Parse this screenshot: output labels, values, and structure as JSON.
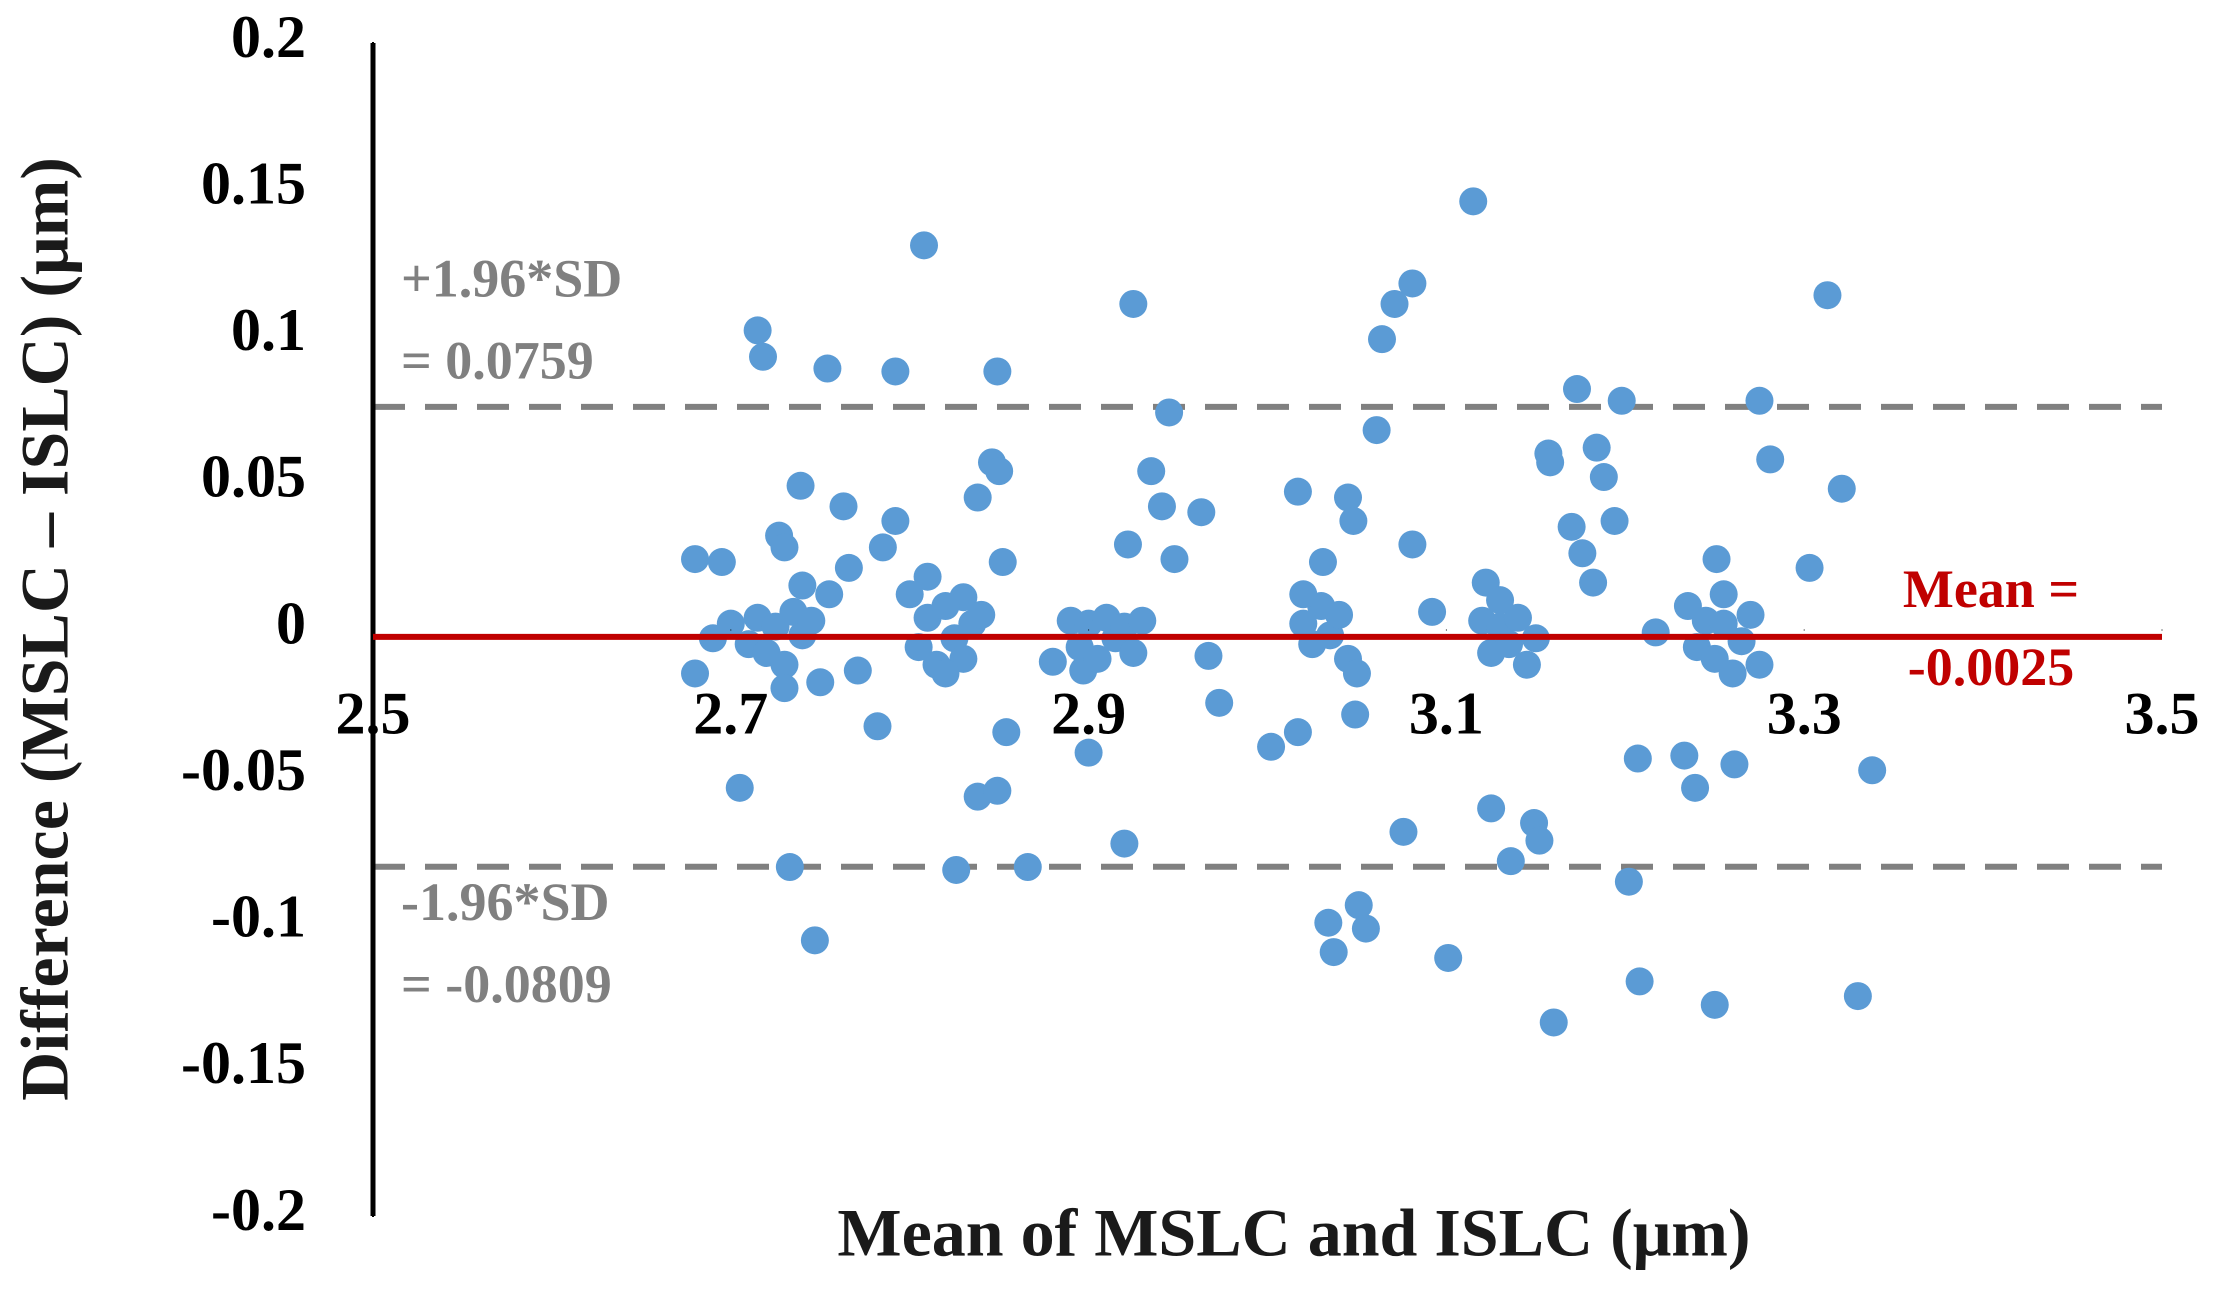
{
  "chart_data": {
    "type": "scatter",
    "x_label": "Mean of MSLC and ISLC (μm)",
    "y_label": "Difference (MSLC – ISLC) (μm)",
    "xlim": [
      2.5,
      3.5
    ],
    "xticks": [
      2.5,
      2.7,
      2.9,
      3.1,
      3.3,
      3.5
    ],
    "ylim": [
      -0.2,
      0.2
    ],
    "yticks": [
      0.2,
      0.15,
      0.1,
      0.05,
      0,
      -0.05,
      -0.1,
      -0.15,
      -0.2
    ],
    "color": "#5b9bd5",
    "reference_lines": [
      {
        "value": 0.0759,
        "label": [
          "+1.96*SD",
          "= 0.0759"
        ],
        "color": "#808080",
        "style": "dashed"
      },
      {
        "value": -0.0809,
        "label": [
          "-1.96*SD",
          "= -0.0809"
        ],
        "color": "#808080",
        "style": "dashed"
      },
      {
        "value": -0.0025,
        "label": [
          "Mean =",
          "-0.0025"
        ],
        "color": "#c00000",
        "style": "solid"
      }
    ],
    "x": [
      2.68,
      2.695,
      2.68,
      2.705,
      2.715,
      2.718,
      2.727,
      2.73,
      2.733,
      2.739,
      2.747,
      2.754,
      2.763,
      2.766,
      2.771,
      2.782,
      2.785,
      2.792,
      2.792,
      2.808,
      2.826,
      2.83,
      2.838,
      2.849,
      2.846,
      2.85,
      2.852,
      2.838,
      2.849,
      2.854,
      2.866,
      2.88,
      2.897,
      2.9,
      2.92,
      2.925,
      2.922,
      2.935,
      2.941,
      2.945,
      2.948,
      2.963,
      2.967,
      2.973,
      3.002,
      3.017,
      3.017,
      3.031,
      3.034,
      3.037,
      3.045,
      3.048,
      3.051,
      3.055,
      3.049,
      3.061,
      3.064,
      3.071,
      3.081,
      3.076,
      3.081,
      3.092,
      3.101,
      3.115,
      3.122,
      3.125,
      3.136,
      3.149,
      3.152,
      3.157,
      3.158,
      3.16,
      3.17,
      3.176,
      3.173,
      3.182,
      3.184,
      3.188,
      3.194,
      3.198,
      3.202,
      3.207,
      3.208,
      3.217,
      3.233,
      3.239,
      3.251,
      3.25,
      3.261,
      3.275,
      3.281,
      3.303,
      3.313,
      3.321,
      3.33,
      3.338,
      2.69,
      2.7,
      2.71,
      2.715,
      2.72,
      2.725,
      2.73,
      2.735,
      2.74,
      2.745,
      2.75,
      2.755,
      2.74,
      2.73,
      2.8,
      2.805,
      2.81,
      2.815,
      2.82,
      2.825,
      2.83,
      2.835,
      2.81,
      2.82,
      2.84,
      2.89,
      2.895,
      2.9,
      2.905,
      2.91,
      2.915,
      2.92,
      2.925,
      2.93,
      3.02,
      3.025,
      3.03,
      3.035,
      3.04,
      3.045,
      3.05,
      3.02,
      3.12,
      3.125,
      3.13,
      3.135,
      3.14,
      3.145,
      3.15,
      3.13,
      3.235,
      3.24,
      3.245,
      3.25,
      3.255,
      3.26,
      3.265,
      3.27,
      3.275,
      3.255
    ],
    "values": [
      0.024,
      0.023,
      -0.015,
      -0.054,
      0.102,
      0.093,
      0.032,
      0.028,
      -0.081,
      0.049,
      -0.106,
      0.089,
      0.042,
      0.021,
      -0.014,
      -0.033,
      0.028,
      0.088,
      0.037,
      0.131,
      -0.082,
      0.011,
      0.045,
      0.088,
      0.057,
      0.054,
      0.023,
      -0.057,
      -0.055,
      -0.035,
      -0.081,
      -0.011,
      -0.014,
      -0.042,
      -0.073,
      0.111,
      0.029,
      0.054,
      0.042,
      0.074,
      0.024,
      0.04,
      -0.009,
      -0.025,
      -0.04,
      0.047,
      -0.035,
      0.023,
      -0.1,
      -0.11,
      0.045,
      0.037,
      -0.094,
      -0.102,
      -0.029,
      0.068,
      0.099,
      0.111,
      0.118,
      -0.069,
      0.029,
      0.006,
      -0.112,
      0.146,
      0.016,
      -0.061,
      -0.079,
      -0.066,
      -0.072,
      0.06,
      0.057,
      -0.134,
      0.035,
      0.026,
      0.082,
      0.016,
      0.062,
      0.052,
      0.037,
      0.078,
      -0.086,
      -0.044,
      -0.12,
      -0.001,
      -0.043,
      -0.054,
      0.024,
      -0.128,
      -0.046,
      0.078,
      0.058,
      0.021,
      0.114,
      0.048,
      -0.125,
      -0.048,
      -0.003,
      0.002,
      -0.005,
      0.004,
      -0.008,
      0.001,
      -0.012,
      0.006,
      -0.002,
      0.003,
      -0.018,
      0.012,
      0.015,
      -0.02,
      0.012,
      -0.006,
      0.004,
      -0.012,
      0.008,
      -0.003,
      -0.01,
      0.002,
      0.018,
      -0.015,
      0.005,
      0.003,
      -0.006,
      0.002,
      -0.01,
      0.004,
      -0.003,
      0.001,
      -0.008,
      0.003,
      0.002,
      -0.005,
      0.008,
      -0.002,
      0.005,
      -0.01,
      -0.015,
      0.012,
      0.003,
      -0.008,
      0.001,
      -0.005,
      0.004,
      -0.012,
      -0.003,
      0.01,
      0.008,
      -0.006,
      0.003,
      -0.01,
      0.002,
      -0.015,
      -0.004,
      0.005,
      -0.012,
      0.012
    ]
  }
}
